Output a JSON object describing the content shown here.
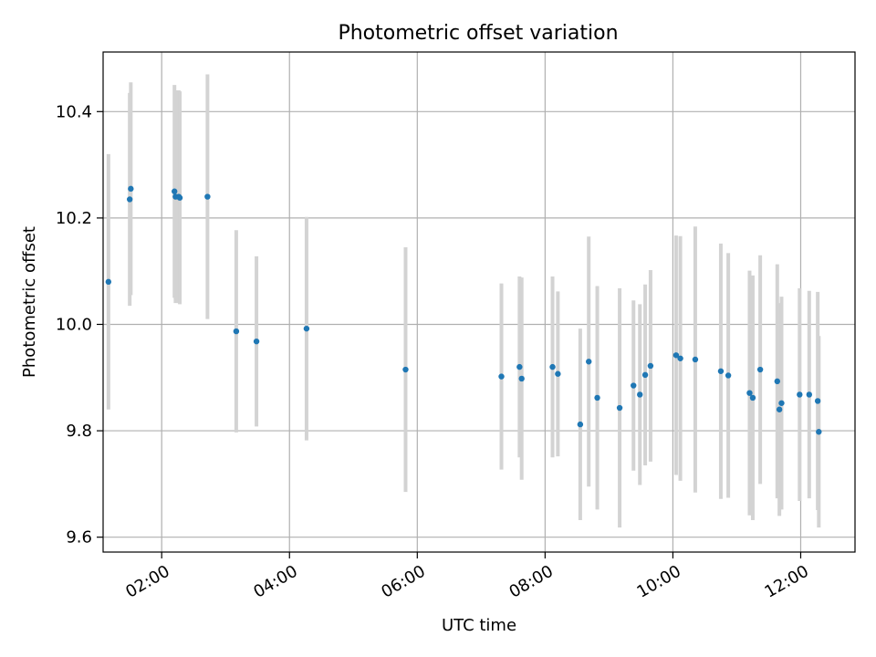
{
  "chart_data": {
    "type": "scatter",
    "title": "Photometric offset variation",
    "xlabel": "UTC time",
    "ylabel": "Photometric offset",
    "xlim": [
      "01:05",
      "12:51"
    ],
    "ylim": [
      9.572,
      10.512
    ],
    "xticks": [
      "02:00",
      "04:00",
      "06:00",
      "08:00",
      "10:00",
      "12:00"
    ],
    "yticks": [
      "9.6",
      "9.8",
      "10.0",
      "10.2",
      "10.4"
    ],
    "grid": true,
    "colors": {
      "points": "#1f77b4",
      "errorbars": "#d3d3d3",
      "grid": "#b0b0b0"
    },
    "series": [
      {
        "x": [
          "01:10",
          "01:30",
          "01:31",
          "02:12",
          "02:13",
          "02:16",
          "02:17",
          "02:43",
          "03:10",
          "03:29",
          "04:16",
          "05:49",
          "07:19",
          "07:36",
          "07:38",
          "08:07",
          "08:12",
          "08:33",
          "08:41",
          "08:49",
          "09:10",
          "09:23",
          "09:29",
          "09:34",
          "09:39",
          "10:03",
          "10:07",
          "10:21",
          "10:45",
          "10:52",
          "11:12",
          "11:15",
          "11:22",
          "11:38",
          "11:40",
          "11:42",
          "11:59",
          "12:08",
          "12:16",
          "12:17"
        ],
        "y": [
          10.08,
          10.235,
          10.255,
          10.25,
          10.24,
          10.24,
          10.238,
          10.24,
          9.987,
          9.968,
          9.992,
          9.915,
          9.902,
          9.92,
          9.898,
          9.92,
          9.907,
          9.812,
          9.93,
          9.862,
          9.843,
          9.885,
          9.868,
          9.905,
          9.922,
          9.942,
          9.936,
          9.934,
          9.912,
          9.904,
          9.871,
          9.862,
          9.915,
          9.893,
          9.84,
          9.852,
          9.868,
          9.868,
          9.856,
          9.798
        ],
        "err": [
          0.24,
          0.2,
          0.2,
          0.2,
          0.2,
          0.2,
          0.2,
          0.23,
          0.19,
          0.16,
          0.21,
          0.23,
          0.175,
          0.17,
          0.19,
          0.17,
          0.155,
          0.18,
          0.235,
          0.21,
          0.225,
          0.16,
          0.17,
          0.17,
          0.18,
          0.225,
          0.23,
          0.25,
          0.24,
          0.23,
          0.23,
          0.23,
          0.215,
          0.22,
          0.2,
          0.2,
          0.2,
          0.195,
          0.205,
          0.18
        ]
      }
    ]
  }
}
